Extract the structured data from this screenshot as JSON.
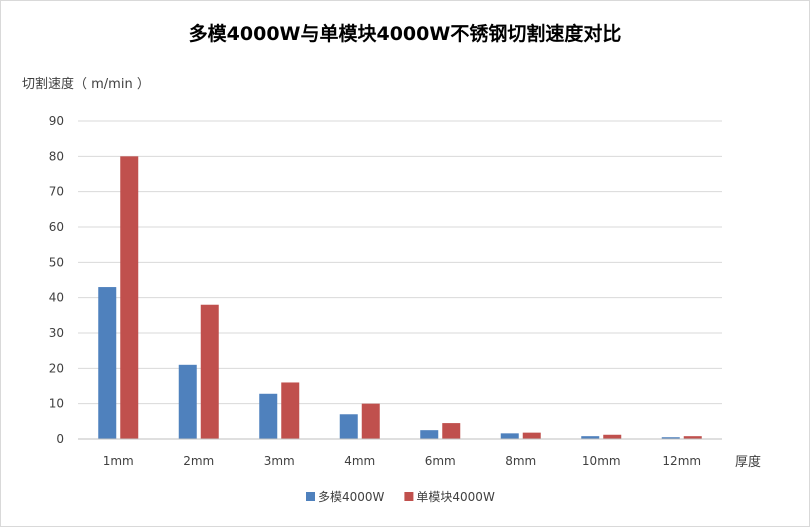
{
  "chart_data": {
    "type": "bar",
    "title": "多模4000W与单模块4000W不锈钢切割速度对比",
    "ylabel": "切割速度（ m/min ）",
    "xlabel": "厚度",
    "categories": [
      "1mm",
      "2mm",
      "3mm",
      "4mm",
      "6mm",
      "8mm",
      "10mm",
      "12mm"
    ],
    "series": [
      {
        "name": "多模4000W",
        "color": "#4f81bd",
        "values": [
          43,
          21,
          12.8,
          7,
          2.5,
          1.6,
          0.8,
          0.5
        ]
      },
      {
        "name": "单模块4000W",
        "color": "#c0504d",
        "values": [
          80,
          38,
          16,
          10,
          4.5,
          1.8,
          1.2,
          0.8
        ]
      }
    ],
    "ylim": [
      0,
      90
    ],
    "yticks": [
      0,
      10,
      20,
      30,
      40,
      50,
      60,
      70,
      80,
      90
    ],
    "grid": true,
    "legend_position": "bottom"
  }
}
